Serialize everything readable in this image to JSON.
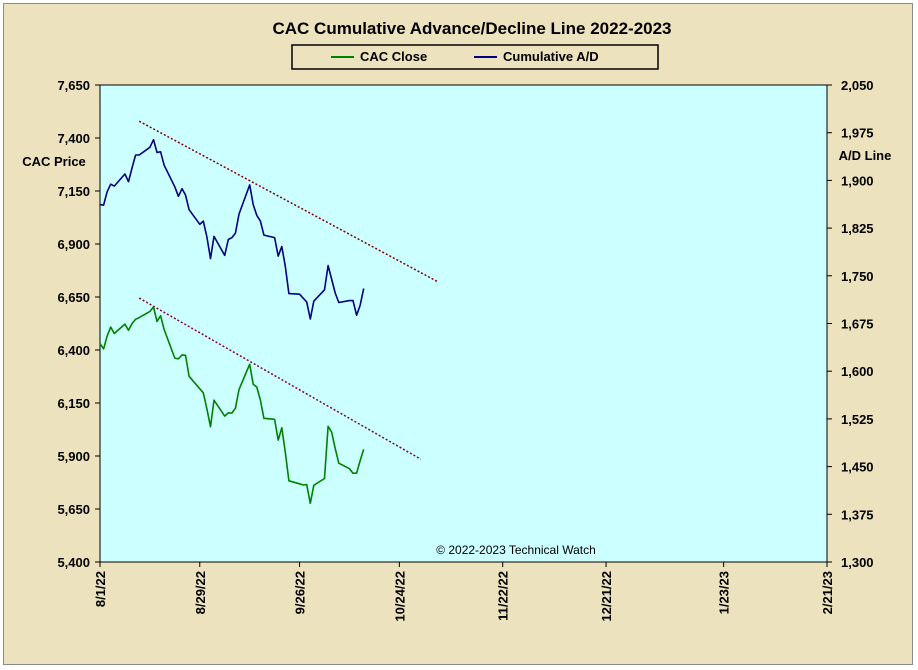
{
  "chart_data": {
    "type": "line",
    "title": "CAC Cumulative  Advance/Decline  Line  2022-2023",
    "left_axis_label": "CAC Price",
    "right_axis_label": "A/D Line",
    "copyright": "© 2022-2023  Technical  Watch",
    "left_axis": {
      "min": 5400,
      "max": 7650,
      "ticks": [
        5400,
        5650,
        5900,
        6150,
        6400,
        6650,
        6900,
        7150,
        7400,
        7650
      ],
      "tick_labels": [
        "5,400",
        "5,650",
        "5,900",
        "6,150",
        "6,400",
        "6,650",
        "6,900",
        "7,150",
        "7,400",
        "7,650"
      ]
    },
    "right_axis": {
      "min": 1300,
      "max": 2050,
      "ticks": [
        1300,
        1375,
        1450,
        1525,
        1600,
        1675,
        1750,
        1825,
        1900,
        1975,
        2050
      ],
      "tick_labels": [
        "1,300",
        "1,375",
        "1,450",
        "1,525",
        "1,600",
        "1,675",
        "1,750",
        "1,825",
        "1,900",
        "1,975",
        "2,050"
      ]
    },
    "x_axis": {
      "start": "2022-08-01",
      "end": "2023-02-21",
      "tick_labels": [
        "8/1/22",
        "8/29/22",
        "9/26/22",
        "10/24/22",
        "11/22/22",
        "12/21/22",
        "1/23/23",
        "2/21/23"
      ],
      "tick_dates": [
        "2022-08-01",
        "2022-08-29",
        "2022-09-26",
        "2022-10-24",
        "2022-11-22",
        "2022-12-21",
        "2023-01-23",
        "2023-02-21"
      ]
    },
    "legend": {
      "placement": "top-center"
    },
    "grid": false,
    "plot_background": "#ccffff",
    "series": [
      {
        "name": "CAC Close",
        "axis": "left",
        "color": "#008000",
        "points": [
          [
            "2022-08-01",
            6430
          ],
          [
            "2022-08-02",
            6405
          ],
          [
            "2022-08-03",
            6465
          ],
          [
            "2022-08-04",
            6508
          ],
          [
            "2022-08-05",
            6478
          ],
          [
            "2022-08-08",
            6522
          ],
          [
            "2022-08-09",
            6493
          ],
          [
            "2022-08-10",
            6525
          ],
          [
            "2022-08-11",
            6545
          ],
          [
            "2022-08-12",
            6553
          ],
          [
            "2022-08-15",
            6582
          ],
          [
            "2022-08-16",
            6603
          ],
          [
            "2022-08-17",
            6535
          ],
          [
            "2022-08-18",
            6562
          ],
          [
            "2022-08-19",
            6497
          ],
          [
            "2022-08-22",
            6362
          ],
          [
            "2022-08-23",
            6358
          ],
          [
            "2022-08-24",
            6377
          ],
          [
            "2022-08-25",
            6375
          ],
          [
            "2022-08-26",
            6276
          ],
          [
            "2022-08-29",
            6217
          ],
          [
            "2022-08-30",
            6198
          ],
          [
            "2022-08-31",
            6122
          ],
          [
            "2022-09-01",
            6038
          ],
          [
            "2022-09-02",
            6163
          ],
          [
            "2022-09-05",
            6088
          ],
          [
            "2022-09-06",
            6104
          ],
          [
            "2022-09-07",
            6103
          ],
          [
            "2022-09-08",
            6125
          ],
          [
            "2022-09-09",
            6213
          ],
          [
            "2022-09-12",
            6333
          ],
          [
            "2022-09-13",
            6238
          ],
          [
            "2022-09-14",
            6225
          ],
          [
            "2022-09-15",
            6164
          ],
          [
            "2022-09-16",
            6078
          ],
          [
            "2022-09-19",
            6073
          ],
          [
            "2022-09-20",
            5975
          ],
          [
            "2022-09-21",
            6033
          ],
          [
            "2022-09-22",
            5918
          ],
          [
            "2022-09-23",
            5783
          ],
          [
            "2022-09-26",
            5769
          ],
          [
            "2022-09-27",
            5763
          ],
          [
            "2022-09-28",
            5765
          ],
          [
            "2022-09-29",
            5677
          ],
          [
            "2022-09-30",
            5762
          ],
          [
            "2022-10-03",
            5794
          ],
          [
            "2022-10-04",
            6040
          ],
          [
            "2022-10-05",
            6013
          ],
          [
            "2022-10-06",
            5936
          ],
          [
            "2022-10-07",
            5866
          ],
          [
            "2022-10-10",
            5840
          ],
          [
            "2022-10-11",
            5819
          ],
          [
            "2022-10-12",
            5819
          ],
          [
            "2022-10-13",
            5879
          ],
          [
            "2022-10-14",
            5931
          ]
        ]
      },
      {
        "name": "Cumulative A/D",
        "axis": "right",
        "color": "#000080",
        "points": [
          [
            "2022-08-01",
            1862
          ],
          [
            "2022-08-02",
            1861
          ],
          [
            "2022-08-03",
            1882
          ],
          [
            "2022-08-04",
            1894
          ],
          [
            "2022-08-05",
            1891
          ],
          [
            "2022-08-08",
            1910
          ],
          [
            "2022-08-09",
            1898
          ],
          [
            "2022-08-10",
            1920
          ],
          [
            "2022-08-11",
            1940
          ],
          [
            "2022-08-12",
            1940
          ],
          [
            "2022-08-15",
            1952
          ],
          [
            "2022-08-16",
            1964
          ],
          [
            "2022-08-17",
            1944
          ],
          [
            "2022-08-18",
            1945
          ],
          [
            "2022-08-19",
            1924
          ],
          [
            "2022-08-22",
            1890
          ],
          [
            "2022-08-23",
            1875
          ],
          [
            "2022-08-24",
            1887
          ],
          [
            "2022-08-25",
            1877
          ],
          [
            "2022-08-26",
            1854
          ],
          [
            "2022-08-29",
            1831
          ],
          [
            "2022-08-30",
            1836
          ],
          [
            "2022-08-31",
            1811
          ],
          [
            "2022-09-01",
            1777
          ],
          [
            "2022-09-02",
            1812
          ],
          [
            "2022-09-05",
            1782
          ],
          [
            "2022-09-06",
            1807
          ],
          [
            "2022-09-07",
            1810
          ],
          [
            "2022-09-08",
            1817
          ],
          [
            "2022-09-09",
            1847
          ],
          [
            "2022-09-12",
            1893
          ],
          [
            "2022-09-13",
            1862
          ],
          [
            "2022-09-14",
            1845
          ],
          [
            "2022-09-15",
            1836
          ],
          [
            "2022-09-16",
            1814
          ],
          [
            "2022-09-19",
            1810
          ],
          [
            "2022-09-20",
            1781
          ],
          [
            "2022-09-21",
            1796
          ],
          [
            "2022-09-22",
            1765
          ],
          [
            "2022-09-23",
            1722
          ],
          [
            "2022-09-26",
            1721
          ],
          [
            "2022-09-27",
            1715
          ],
          [
            "2022-09-28",
            1709
          ],
          [
            "2022-09-29",
            1682
          ],
          [
            "2022-09-30",
            1710
          ],
          [
            "2022-10-03",
            1728
          ],
          [
            "2022-10-04",
            1766
          ],
          [
            "2022-10-05",
            1745
          ],
          [
            "2022-10-06",
            1723
          ],
          [
            "2022-10-07",
            1708
          ],
          [
            "2022-10-10",
            1711
          ],
          [
            "2022-10-11",
            1711
          ],
          [
            "2022-10-12",
            1688
          ],
          [
            "2022-10-13",
            1704
          ],
          [
            "2022-10-14",
            1730
          ]
        ]
      }
    ],
    "trendlines": [
      {
        "axis": "right",
        "color": "#800000",
        "dash": "dotted",
        "from": [
          "2022-08-12",
          1993
        ],
        "to": [
          "2022-11-04",
          1740
        ]
      },
      {
        "axis": "left",
        "color": "#800040",
        "dash": "dotted",
        "from": [
          "2022-08-12",
          6645
        ],
        "to": [
          "2022-10-30",
          5885
        ]
      }
    ]
  }
}
